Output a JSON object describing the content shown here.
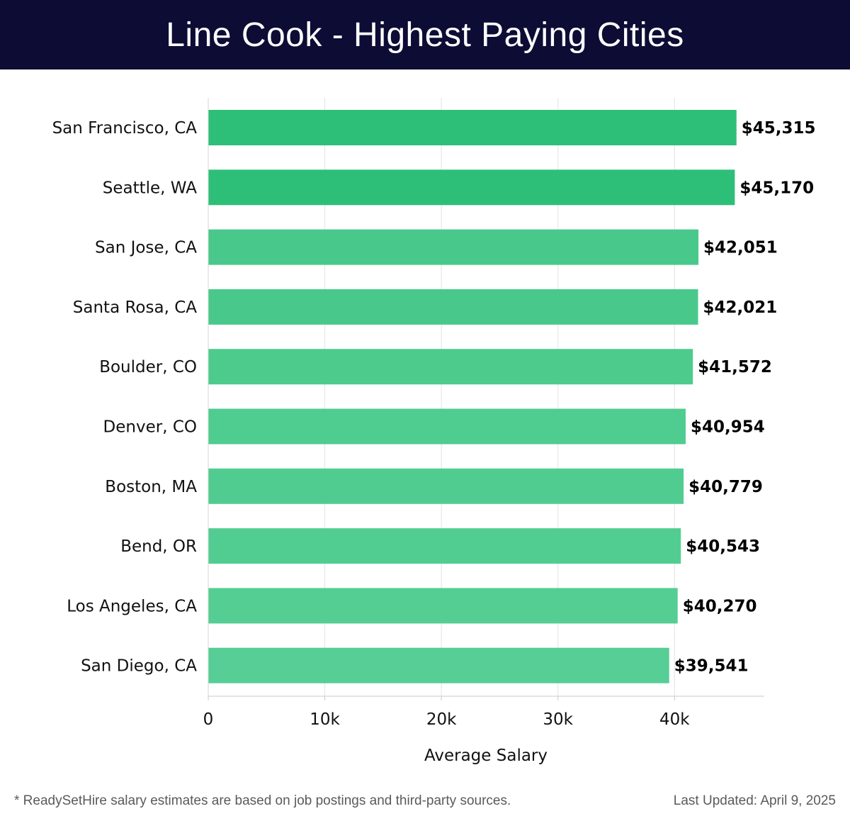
{
  "header": {
    "title": "Line Cook - Highest Paying Cities"
  },
  "chart_data": {
    "type": "bar",
    "orientation": "horizontal",
    "categories": [
      "San Francisco, CA",
      "Seattle, WA",
      "San Jose, CA",
      "Santa Rosa, CA",
      "Boulder, CO",
      "Denver, CO",
      "Boston, MA",
      "Bend, OR",
      "Los Angeles, CA",
      "San Diego, CA"
    ],
    "values": [
      45315,
      45170,
      42051,
      42021,
      41572,
      40954,
      40779,
      40543,
      40270,
      39541
    ],
    "value_labels": [
      "$45,315",
      "$45,170",
      "$42,051",
      "$42,021",
      "$41,572",
      "$40,954",
      "$40,779",
      "$40,543",
      "$40,270",
      "$39,541"
    ],
    "xlabel": "Average Salary",
    "ylabel": "",
    "xlim": [
      0,
      47700
    ],
    "x_ticks": [
      0,
      10000,
      20000,
      30000,
      40000
    ],
    "x_tick_labels": [
      "0",
      "10k",
      "20k",
      "30k",
      "40k"
    ],
    "grid": "vertical",
    "colors": [
      "#2dbf78",
      "#2dbf78",
      "#48c98b",
      "#48c98b",
      "#4ccb8d",
      "#4fcc90",
      "#51cc91",
      "#52cd92",
      "#54ce93",
      "#56ce95"
    ]
  },
  "footer": {
    "note": "* ReadySetHire salary estimates are based on job postings and third-party sources.",
    "updated": "Last Updated: April 9, 2025"
  }
}
